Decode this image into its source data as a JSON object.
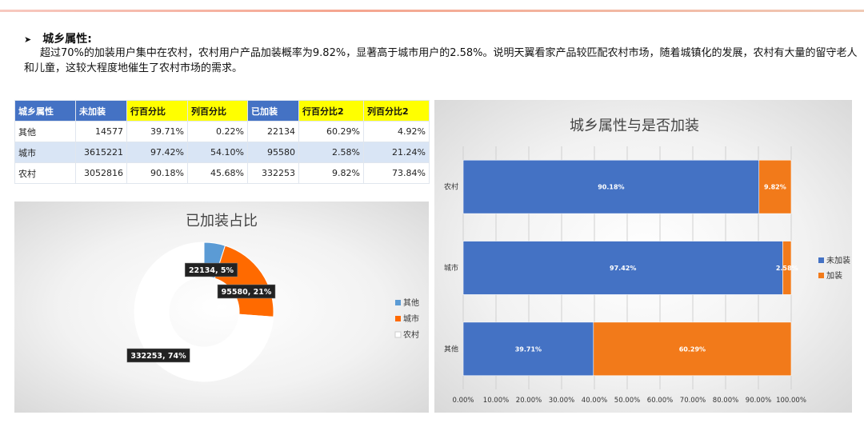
{
  "heading": "城乡属性:",
  "paragraph": "超过70%的加装用户集中在农村，农村用户产品加装概率为9.82%，显著高于城市用户的2.58%。说明天翼看家产品较匹配农村市场，随着城镇化的发展，农村有大量的留守老人和儿童，这较大程度地催生了农村市场的需求。",
  "table": {
    "headers": [
      "城乡属性",
      "未加装",
      "行百分比",
      "列百分比",
      "已加装",
      "行百分比2",
      "列百分比2"
    ],
    "rows": [
      [
        "其他",
        "14577",
        "39.71%",
        "0.22%",
        "22134",
        "60.29%",
        "4.92%"
      ],
      [
        "城市",
        "3615221",
        "97.42%",
        "54.10%",
        "95580",
        "2.58%",
        "21.24%"
      ],
      [
        "农村",
        "3052816",
        "90.18%",
        "45.68%",
        "332253",
        "9.82%",
        "73.84%"
      ]
    ]
  },
  "colors": {
    "blue": "#4472c4",
    "orange": "#f27a1a",
    "donut_blue": "#5b9bd5",
    "donut_orange": "#ff6a00",
    "white": "#ffffff"
  },
  "chart_data": [
    {
      "type": "pie",
      "variant": "donut",
      "title": "已加装占比",
      "categories": [
        "其他",
        "城市",
        "农村"
      ],
      "values": [
        22134,
        95580,
        332253
      ],
      "data_labels": [
        "22134, 5%",
        "95580, 21%",
        "332253, 74%"
      ],
      "legend": [
        "其他",
        "城市",
        "农村"
      ],
      "legend_position": "right"
    },
    {
      "type": "bar",
      "orientation": "horizontal",
      "stacked": "percent",
      "title": "城乡属性与是否加装",
      "categories": [
        "农村",
        "城市",
        "其他"
      ],
      "series": [
        {
          "name": "未加装",
          "values": [
            90.18,
            97.42,
            39.71
          ],
          "labels": [
            "90.18%",
            "97.42%",
            "39.71%"
          ]
        },
        {
          "name": "加装",
          "values": [
            9.82,
            2.58,
            60.29
          ],
          "labels": [
            "9.82%",
            "2.58%",
            "60.29%"
          ]
        }
      ],
      "xlim": [
        0,
        100
      ],
      "x_ticks": [
        "0.00%",
        "10.00%",
        "20.00%",
        "30.00%",
        "40.00%",
        "50.00%",
        "60.00%",
        "70.00%",
        "80.00%",
        "90.00%",
        "100.00%"
      ],
      "grid": true,
      "legend_position": "right"
    }
  ]
}
